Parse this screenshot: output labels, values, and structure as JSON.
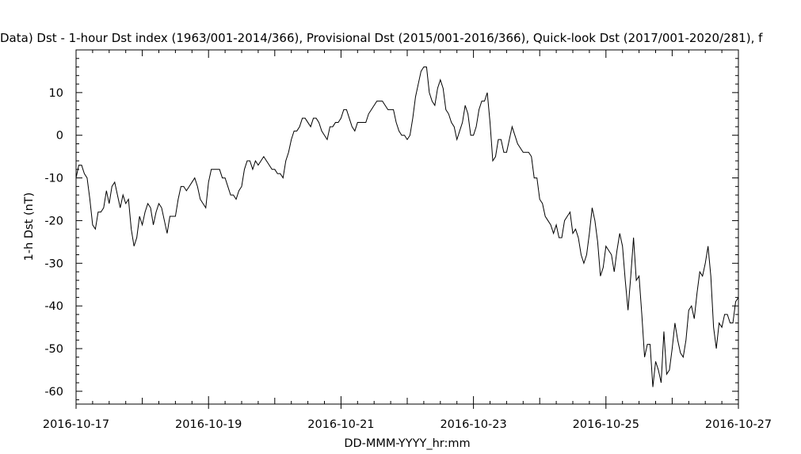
{
  "chart_data": {
    "type": "line",
    "title": "Data)  Dst - 1-hour Dst index (1963/001-2014/366), Provisional Dst (2015/001-2016/366), Quick-look Dst (2017/001-2020/281), f",
    "xlabel": "DD-MMM-YYYY_hr:mm",
    "ylabel": "1-h Dst (nT)",
    "xlim": [
      "2016-10-17 00:00",
      "2016-10-27 00:00"
    ],
    "ylim": [
      -63,
      20
    ],
    "x_tick_labels": [
      "2016-10-17",
      "2016-10-19",
      "2016-10-21",
      "2016-10-23",
      "2016-10-25",
      "2016-10-27"
    ],
    "y_tick_labels": [
      "10",
      "0",
      "-10",
      "-20",
      "-30",
      "-40",
      "-50",
      "-60"
    ],
    "x_start": "2016-10-17 00:00",
    "x_step": "1 hour",
    "grid": false,
    "series": [
      {
        "values": [
          -10,
          -7,
          -7,
          -9,
          -10,
          -15,
          -21,
          -22,
          -18,
          -18,
          -17,
          -13,
          -16,
          -12,
          -11,
          -14,
          -17,
          -14,
          -16,
          -15,
          -22,
          -26,
          -24,
          -19,
          -21,
          -18,
          -16,
          -17,
          -21,
          -18,
          -16,
          -17,
          -20,
          -23,
          -19,
          -19,
          -19,
          -15,
          -12,
          -12,
          -13,
          -12,
          -11,
          -10,
          -12,
          -15,
          -16,
          -17,
          -11,
          -8,
          -8,
          -8,
          -8,
          -10,
          -10,
          -12,
          -14,
          -14,
          -15,
          -13,
          -12,
          -8,
          -6,
          -6,
          -8,
          -6,
          -7,
          -6,
          -5,
          -6,
          -7,
          -8,
          -8,
          -9,
          -9,
          -10,
          -6,
          -4,
          -1,
          1,
          1,
          2,
          4,
          4,
          3,
          2,
          4,
          4,
          3,
          1,
          0,
          -1,
          2,
          2,
          3,
          3,
          4,
          6,
          6,
          4,
          2,
          1,
          3,
          3,
          3,
          3,
          5,
          6,
          7,
          8,
          8,
          8,
          7,
          6,
          6,
          6,
          3,
          1,
          0,
          0,
          -1,
          0,
          4,
          9,
          12,
          15,
          16,
          16,
          10,
          8,
          7,
          11,
          13,
          11,
          6,
          5,
          3,
          2,
          -1,
          1,
          3,
          7,
          5,
          0,
          0,
          2,
          6,
          8,
          8,
          10,
          3,
          -6,
          -5,
          -1,
          -1,
          -4,
          -4,
          -1,
          2,
          0,
          -2,
          -3,
          -4,
          -4,
          -4,
          -5,
          -10,
          -10,
          -15,
          -16,
          -19,
          -20,
          -21,
          -23,
          -21,
          -24,
          -24,
          -20,
          -19,
          -18,
          -23,
          -22,
          -24,
          -28,
          -30,
          -28,
          -23,
          -17,
          -20,
          -25,
          -33,
          -31,
          -26,
          -27,
          -28,
          -32,
          -27,
          -23,
          -26,
          -34,
          -41,
          -33,
          -24,
          -34,
          -33,
          -42,
          -52,
          -49,
          -49,
          -59,
          -53,
          -55,
          -58,
          -46,
          -56,
          -55,
          -50,
          -44,
          -48,
          -51,
          -52,
          -48,
          -41,
          -40,
          -43,
          -37,
          -32,
          -33,
          -30,
          -26,
          -33,
          -45,
          -50,
          -44,
          -45,
          -42,
          -42,
          -44,
          -44,
          -39,
          -38
        ]
      }
    ]
  }
}
